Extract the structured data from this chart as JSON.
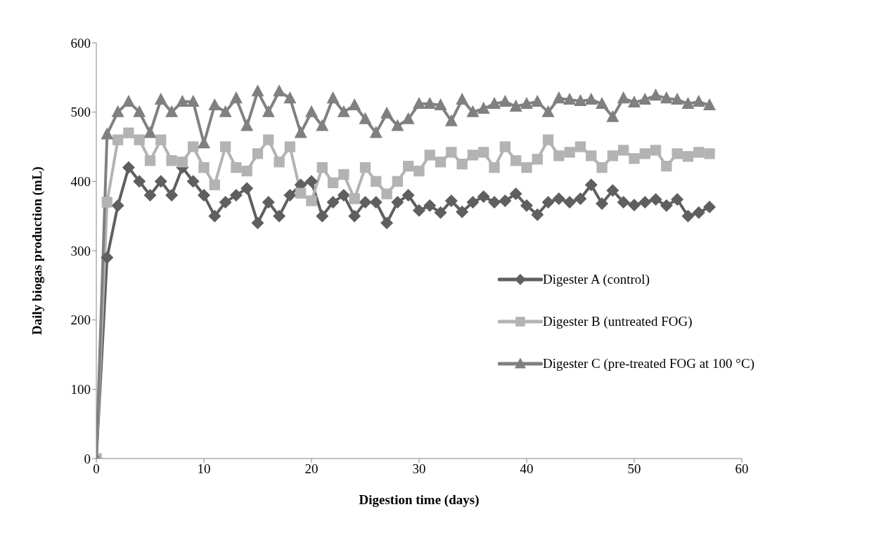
{
  "chart_data": {
    "type": "line",
    "xlabel": "Digestion time (days)",
    "ylabel": "Daily biogas production (mL)",
    "x": [
      0,
      1,
      2,
      3,
      4,
      5,
      6,
      7,
      8,
      9,
      10,
      11,
      12,
      13,
      14,
      15,
      16,
      17,
      18,
      19,
      20,
      21,
      22,
      23,
      24,
      25,
      26,
      27,
      28,
      29,
      30,
      31,
      32,
      33,
      34,
      35,
      36,
      37,
      38,
      39,
      40,
      41,
      42,
      43,
      44,
      45,
      46,
      47,
      48,
      49,
      50,
      51,
      52,
      53,
      54,
      55,
      56,
      57
    ],
    "series": [
      {
        "name": "Digester A (control)",
        "color": "#5f5f5f",
        "marker": "diamond",
        "values": [
          0,
          290,
          365,
          420,
          400,
          380,
          400,
          380,
          420,
          400,
          380,
          350,
          370,
          380,
          390,
          340,
          370,
          350,
          380,
          395,
          400,
          350,
          370,
          380,
          350,
          370,
          370,
          340,
          370,
          380,
          358,
          365,
          355,
          372,
          356,
          370,
          378,
          370,
          372,
          382,
          365,
          352,
          370,
          375,
          370,
          375,
          395,
          368,
          387,
          370,
          366,
          370,
          374,
          365,
          374,
          350,
          355,
          363
        ]
      },
      {
        "name": "Digester B (untreated FOG)",
        "color": "#b3b3b3",
        "marker": "square",
        "values": [
          0,
          370,
          460,
          470,
          460,
          430,
          460,
          430,
          428,
          450,
          420,
          395,
          450,
          420,
          415,
          440,
          460,
          428,
          450,
          383,
          372,
          420,
          398,
          410,
          375,
          420,
          400,
          382,
          400,
          422,
          415,
          438,
          428,
          442,
          425,
          438,
          442,
          420,
          450,
          430,
          420,
          432,
          460,
          437,
          442,
          450,
          437,
          420,
          437,
          445,
          433,
          440,
          445,
          422,
          440,
          436,
          442,
          440
        ]
      },
      {
        "name": "Digester C (pre-treated FOG at 100 °C)",
        "color": "#808080",
        "marker": "triangle",
        "values": [
          0,
          468,
          500,
          515,
          500,
          470,
          518,
          500,
          515,
          515,
          455,
          510,
          500,
          520,
          480,
          530,
          500,
          530,
          520,
          470,
          500,
          480,
          520,
          500,
          510,
          490,
          470,
          498,
          480,
          490,
          512,
          512,
          510,
          487,
          518,
          500,
          505,
          512,
          515,
          508,
          512,
          515,
          500,
          520,
          518,
          516,
          518,
          512,
          493,
          520,
          514,
          518,
          524,
          520,
          518,
          512,
          515,
          510
        ]
      }
    ],
    "xlim": [
      0,
      60
    ],
    "xticks": [
      0,
      10,
      20,
      30,
      40,
      50,
      60
    ],
    "ylim": [
      0,
      600
    ],
    "yticks": [
      0,
      100,
      200,
      300,
      400,
      500,
      600
    ],
    "grid": false,
    "legend": "right",
    "line_style": "solid"
  }
}
